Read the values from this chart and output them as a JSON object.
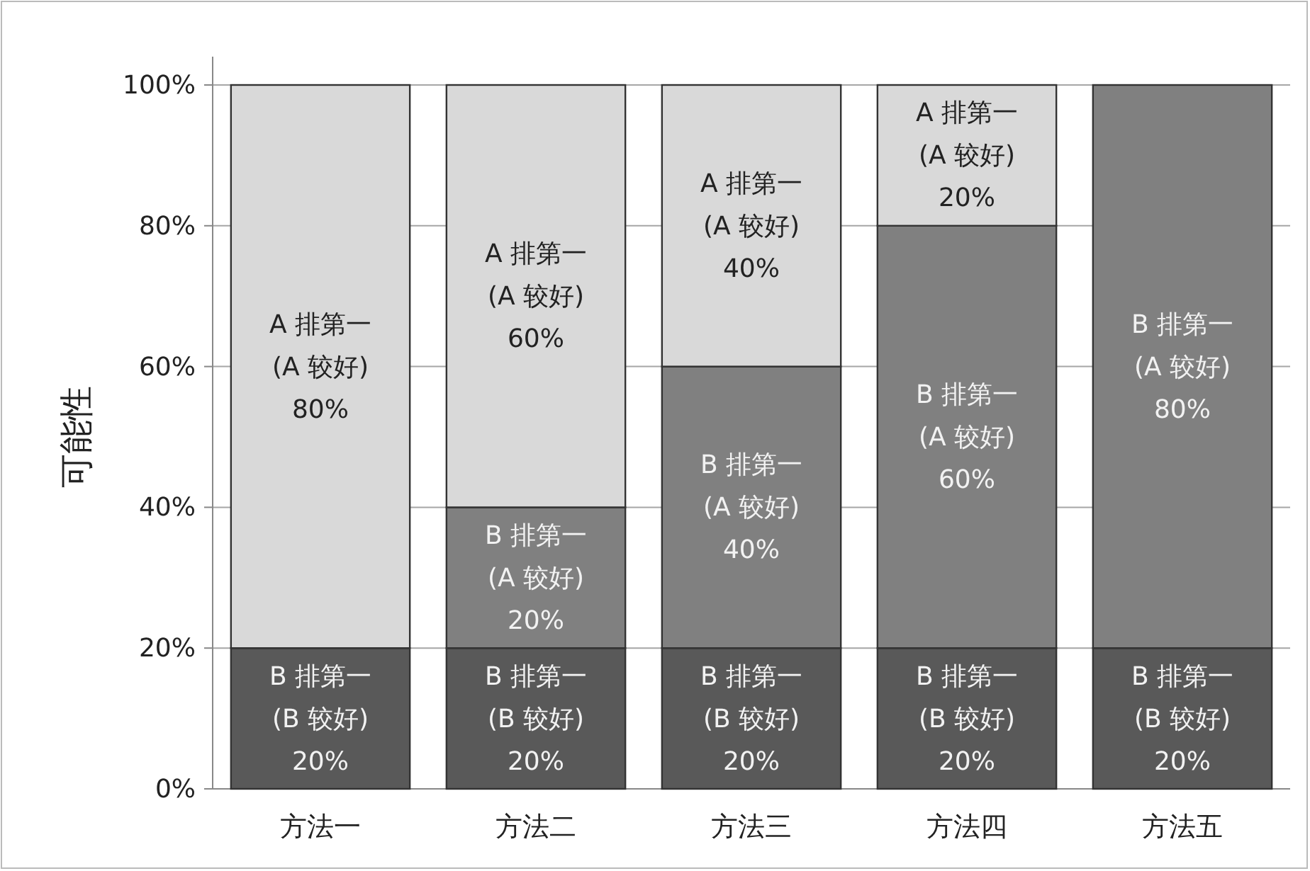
{
  "chart_data": {
    "type": "bar",
    "stacked": true,
    "ylabel": "可能性",
    "categories": [
      "方法一",
      "方法二",
      "方法三",
      "方法四",
      "方法五"
    ],
    "ylim": [
      0,
      100
    ],
    "yticks": [
      {
        "value": 0,
        "label": "0%"
      },
      {
        "value": 20,
        "label": "20%"
      },
      {
        "value": 40,
        "label": "40%"
      },
      {
        "value": 60,
        "label": "60%"
      },
      {
        "value": 80,
        "label": "80%"
      },
      {
        "value": 100,
        "label": "100%"
      }
    ],
    "grid": "y",
    "series": [
      {
        "color": "#595959",
        "values": [
          20,
          20,
          20,
          20,
          20
        ],
        "value_labels": [
          "B 排第一\n(B 较好)\n20%",
          "B 排第一\n(B 较好)\n20%",
          "B 排第一\n(B 较好)\n20%",
          "B 排第一\n(B 较好)\n20%",
          "B 排第一\n(B 较好)\n20%"
        ]
      },
      {
        "color": "#808080",
        "values": [
          0,
          20,
          40,
          60,
          80
        ],
        "value_labels": [
          null,
          "B 排第一\n(A 较好)\n20%",
          "B 排第一\n(A 较好)\n40%",
          "B 排第一\n(A 较好)\n60%",
          "B 排第一\n(A 较好)\n80%"
        ]
      },
      {
        "color": "#d9d9d9",
        "values": [
          80,
          60,
          40,
          20,
          0
        ],
        "value_labels": [
          "A 排第一\n(A 较好)\n80%",
          "A 排第一\n(A 较好)\n60%",
          "A 排第一\n(A 较好)\n40%",
          "A 排第一\n(A 较好)\n20%",
          null
        ]
      }
    ]
  }
}
